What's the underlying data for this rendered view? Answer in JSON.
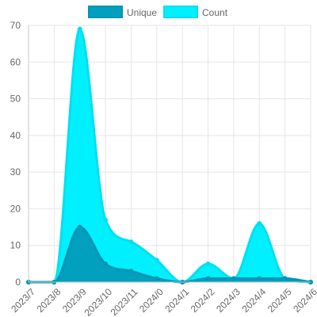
{
  "chart_data": {
    "type": "area",
    "categories": [
      "2023/7",
      "2023/8",
      "2023/9",
      "2023/10",
      "2023/11",
      "2024/0",
      "2024/1",
      "2024/2",
      "2024/3",
      "2024/4",
      "2024/5",
      "2024/6"
    ],
    "series": [
      {
        "name": "Unique",
        "values": [
          0,
          0,
          15,
          5,
          3,
          1,
          0,
          1,
          1,
          1,
          1,
          0
        ],
        "fill": "#00a0be",
        "stroke": "#0096b4"
      },
      {
        "name": "Count",
        "values": [
          0,
          0,
          69,
          17,
          11,
          6,
          0,
          5,
          1,
          16,
          1,
          0
        ],
        "fill": "#00f0ff",
        "stroke": "#00e0f0"
      }
    ],
    "ylim": [
      0,
      70
    ],
    "yticks": [
      0,
      10,
      20,
      30,
      40,
      50,
      60,
      70
    ],
    "grid": true,
    "legend": "top-center",
    "title": "",
    "xlabel": "",
    "ylabel": ""
  }
}
